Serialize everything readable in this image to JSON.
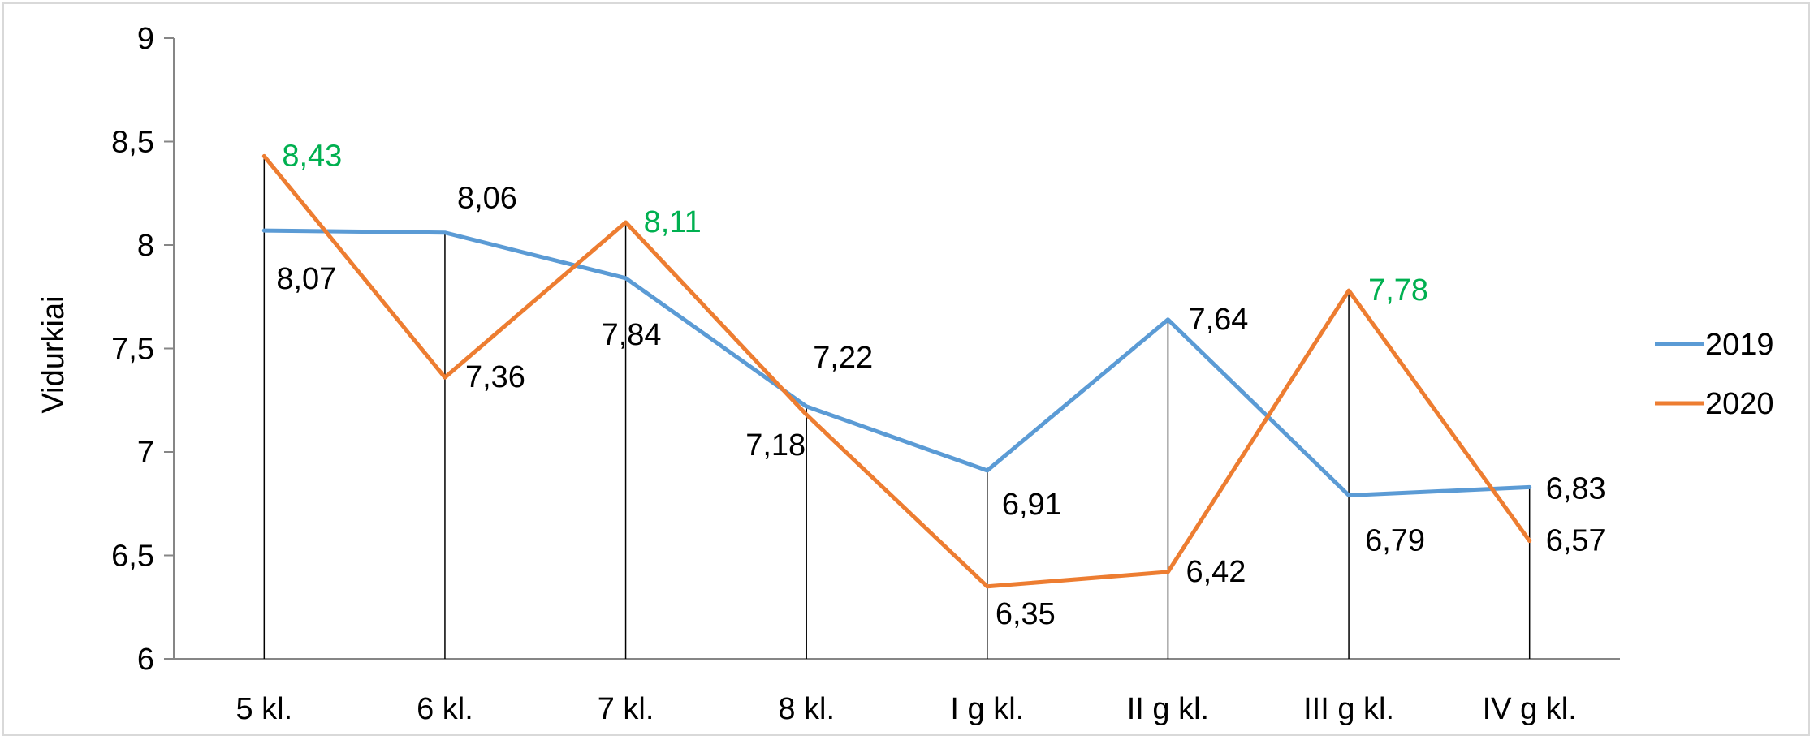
{
  "chart_data": {
    "type": "line",
    "title": "",
    "xlabel": "",
    "ylabel": "Vidurkiai",
    "ylim": [
      6,
      9
    ],
    "yticks": [
      "6",
      "6,5",
      "7",
      "7,5",
      "8",
      "8,5",
      "9"
    ],
    "ytick_values": [
      6,
      6.5,
      7,
      7.5,
      8,
      8.5,
      9
    ],
    "categories": [
      "5 kl.",
      "6 kl.",
      "7 kl.",
      "8 kl.",
      "I g kl.",
      "II g kl.",
      "III g kl.",
      "IV g kl."
    ],
    "series": [
      {
        "name": "2019",
        "color": "#5b9bd5",
        "values": [
          8.07,
          8.06,
          7.84,
          7.22,
          6.91,
          7.64,
          6.79,
          6.83
        ],
        "labels": [
          "8,07",
          "8,06",
          "7,84",
          "7,22",
          "6,91",
          "7,64",
          "6,79",
          "6,83"
        ]
      },
      {
        "name": "2020",
        "color": "#ed7d31",
        "values": [
          8.43,
          7.36,
          8.11,
          7.18,
          6.35,
          6.42,
          7.78,
          6.57
        ],
        "labels": [
          "8,43",
          "7,36",
          "8,11",
          "7,18",
          "6,35",
          "6,42",
          "7,78",
          "6,57"
        ],
        "highlight_color": "#00b050",
        "highlighted": [
          true,
          false,
          true,
          false,
          false,
          false,
          true,
          false
        ]
      }
    ],
    "drop_lines": true,
    "grid": false,
    "legend_position": "right"
  }
}
